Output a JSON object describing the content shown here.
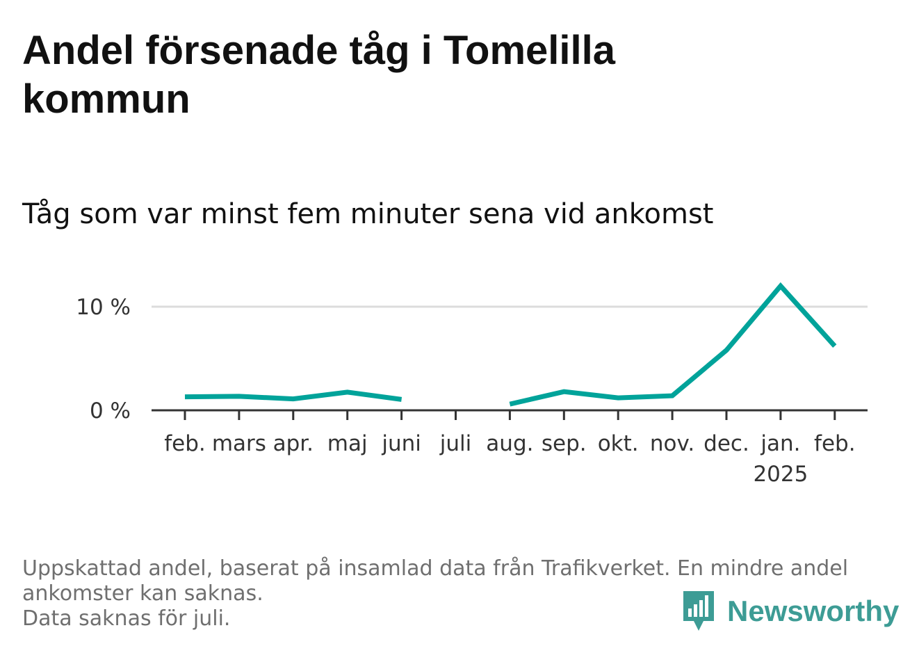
{
  "title": "Andel försenade tåg i Tomelilla kommun",
  "subtitle": "Tåg som var minst fem minuter sena vid ankomst",
  "footnote": {
    "line1": "Uppskattad andel, baserat på insamlad data från Trafikverket. En mindre andel ankomster kan saknas.",
    "line2": "Data saknas för juli."
  },
  "brand": {
    "name": "Newsworthy",
    "icon": "newsworthy-logo-icon",
    "color": "#3d9c95"
  },
  "chart_data": {
    "type": "line",
    "categories": [
      "feb.",
      "mars",
      "apr.",
      "maj",
      "juni",
      "juli",
      "aug.",
      "sep.",
      "okt.",
      "nov.",
      "dec.",
      "jan.",
      "feb."
    ],
    "year_label": {
      "under": "jan.",
      "text": "2025"
    },
    "series": [
      {
        "values": [
          1.3,
          1.35,
          1.1,
          1.75,
          1.05,
          null,
          0.6,
          1.8,
          1.2,
          1.4,
          5.8,
          12.0,
          6.2
        ],
        "color": "#00a39a"
      }
    ],
    "y_ticks": [
      {
        "value": 0,
        "label": "0 %"
      },
      {
        "value": 10,
        "label": "10 %"
      }
    ],
    "ylim": [
      0,
      12
    ],
    "xlabel": "",
    "ylabel": "",
    "grid": true,
    "missing": [
      "juli"
    ]
  }
}
